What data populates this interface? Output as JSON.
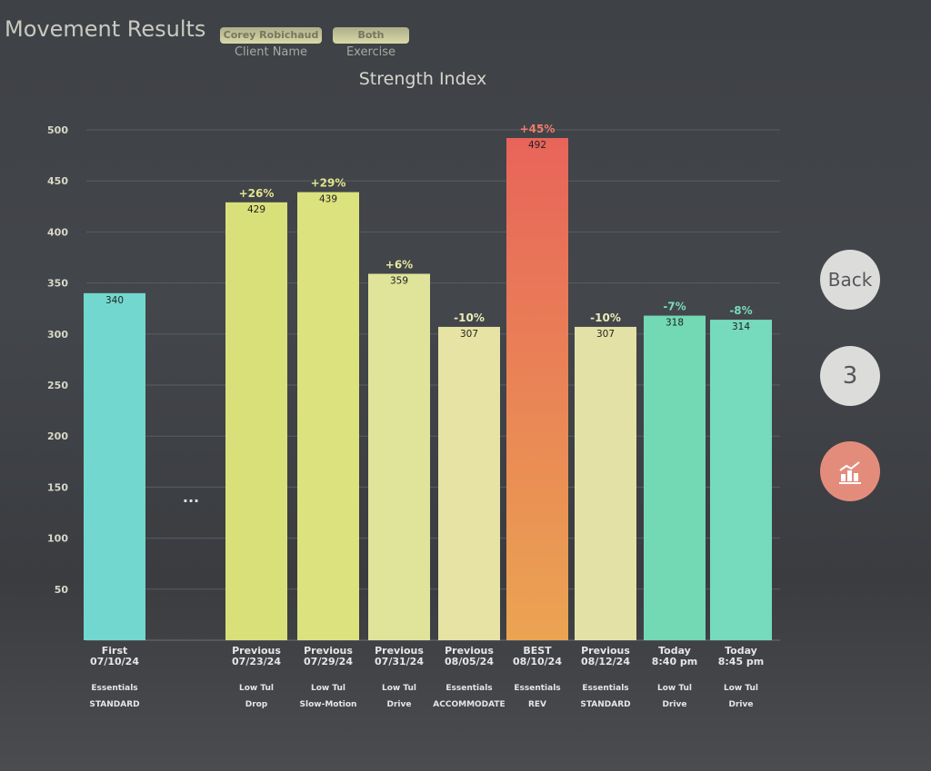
{
  "header": {
    "title": "Movement Results",
    "client_name_value": "Corey Robichaud",
    "client_name_label": "Client Name",
    "exercise_value": "Both",
    "exercise_label": "Exercise"
  },
  "side_buttons": {
    "back_label": "Back",
    "page_label": "3",
    "chart_icon": "chart-icon"
  },
  "chart_data": {
    "type": "bar",
    "title": "Strength Index",
    "ylim": [
      0,
      500
    ],
    "yticks": [
      50,
      100,
      150,
      200,
      250,
      300,
      350,
      400,
      450,
      500
    ],
    "grid": true,
    "ellipsis": "...",
    "bars": [
      {
        "label": "First",
        "date": "07/10/24",
        "program": "Essentials",
        "mode": "STANDARD",
        "value": 340,
        "change": "",
        "color": "#72d8cf",
        "change_color": ""
      },
      {
        "label": "Previous",
        "date": "07/23/24",
        "program": "Low Tul",
        "mode": "Drop",
        "value": 429,
        "change": "+26%",
        "color": "#d9e07a",
        "change_color": "#e2e58a"
      },
      {
        "label": "Previous",
        "date": "07/29/24",
        "program": "Low Tul",
        "mode": "Slow-Motion",
        "value": 439,
        "change": "+29%",
        "color": "#dbe27e",
        "change_color": "#e2e58a"
      },
      {
        "label": "Previous",
        "date": "07/31/24",
        "program": "Low Tul",
        "mode": "Drive",
        "value": 359,
        "change": "+6%",
        "color": "#e0e49a",
        "change_color": "#e6e8a0"
      },
      {
        "label": "Previous",
        "date": "08/05/24",
        "program": "Essentials",
        "mode": "ACCOMMODATE",
        "value": 307,
        "change": "-10%",
        "color": "#e6e3a4",
        "change_color": "#ecebb8"
      },
      {
        "label": "BEST",
        "date": "08/10/24",
        "program": "Essentials",
        "mode": "REV",
        "value": 492,
        "change": "+45%",
        "color": "#e8705a",
        "change_color": "#f07c68"
      },
      {
        "label": "Previous",
        "date": "08/12/24",
        "program": "Essentials",
        "mode": "STANDARD",
        "value": 307,
        "change": "-10%",
        "color": "#e4e1a6",
        "change_color": "#ecebb8"
      },
      {
        "label": "Today",
        "date": "8:40 pm",
        "program": "Low Tul",
        "mode": "Drive",
        "value": 318,
        "change": "-7%",
        "color": "#72d9b4",
        "change_color": "#78dcb8"
      },
      {
        "label": "Today",
        "date": "8:45 pm",
        "program": "Low Tul",
        "mode": "Drive",
        "value": 314,
        "change": "-8%",
        "color": "#76dabc",
        "change_color": "#78dcb8"
      }
    ]
  }
}
